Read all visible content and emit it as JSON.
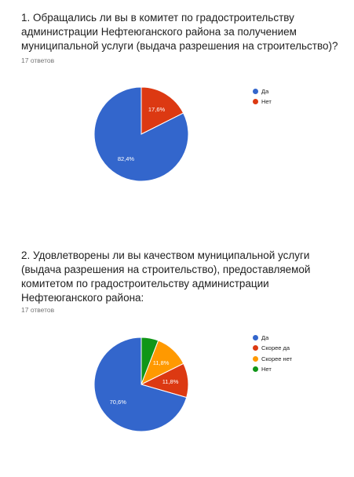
{
  "questions": [
    {
      "title_lines": [
        "1. Обращались ли вы в комитет по градостроительству",
        "администрации Нефтеюганского района за получением",
        "муниципальной услуги (выдача разрешения на строительство)?"
      ],
      "response_count": "17 ответов"
    },
    {
      "title_lines": [
        "2. Удовлетворены ли вы качеством муниципальной услуги",
        "(выдача разрешения на строительство), предоставляемой",
        "комитетом по градостроительству администрации",
        "Нефтеюганского района:"
      ],
      "response_count": "17 ответов"
    }
  ],
  "chart_data": [
    {
      "type": "pie",
      "categories": [
        "Да",
        "Нет"
      ],
      "values": [
        82.4,
        17.6
      ],
      "labels": [
        "82,4%",
        "17,6%"
      ],
      "colors": [
        "#3366cc",
        "#dc3912"
      ],
      "legend_position": "right"
    },
    {
      "type": "pie",
      "categories": [
        "Да",
        "Скорее да",
        "Скорее нет",
        "Нет"
      ],
      "values": [
        70.6,
        11.8,
        11.8,
        5.9
      ],
      "labels": [
        "70,6%",
        "11,8%",
        "11,8%",
        ""
      ],
      "colors": [
        "#3366cc",
        "#dc3912",
        "#ff9900",
        "#109618"
      ],
      "legend_position": "right"
    }
  ]
}
